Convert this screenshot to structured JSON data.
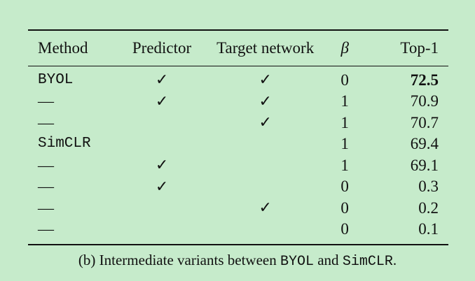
{
  "table": {
    "headers": {
      "method": "Method",
      "predictor": "Predictor",
      "target": "Target network",
      "beta": "β",
      "top1": "Top-1"
    },
    "rows": [
      {
        "method": "BYOL",
        "predictor": "✓",
        "target": "✓",
        "beta": "0",
        "top1": "72.5"
      },
      {
        "method": "—",
        "predictor": "✓",
        "target": "✓",
        "beta": "1",
        "top1": "70.9"
      },
      {
        "method": "—",
        "predictor": "",
        "target": "✓",
        "beta": "1",
        "top1": "70.7"
      },
      {
        "method": "SimCLR",
        "predictor": "",
        "target": "",
        "beta": "1",
        "top1": "69.4"
      },
      {
        "method": "—",
        "predictor": "✓",
        "target": "",
        "beta": "1",
        "top1": "69.1"
      },
      {
        "method": "—",
        "predictor": "✓",
        "target": "",
        "beta": "0",
        "top1": "0.3"
      },
      {
        "method": "—",
        "predictor": "",
        "target": "✓",
        "beta": "0",
        "top1": "0.2"
      },
      {
        "method": "—",
        "predictor": "",
        "target": "",
        "beta": "0",
        "top1": "0.1"
      }
    ]
  },
  "caption": {
    "prefix": "(b) Intermediate variants between ",
    "term1": "BYOL",
    "middle": " and ",
    "term2": "SimCLR",
    "suffix": "."
  },
  "colors": {
    "background": "#c6ebcb",
    "text": "#111111"
  }
}
